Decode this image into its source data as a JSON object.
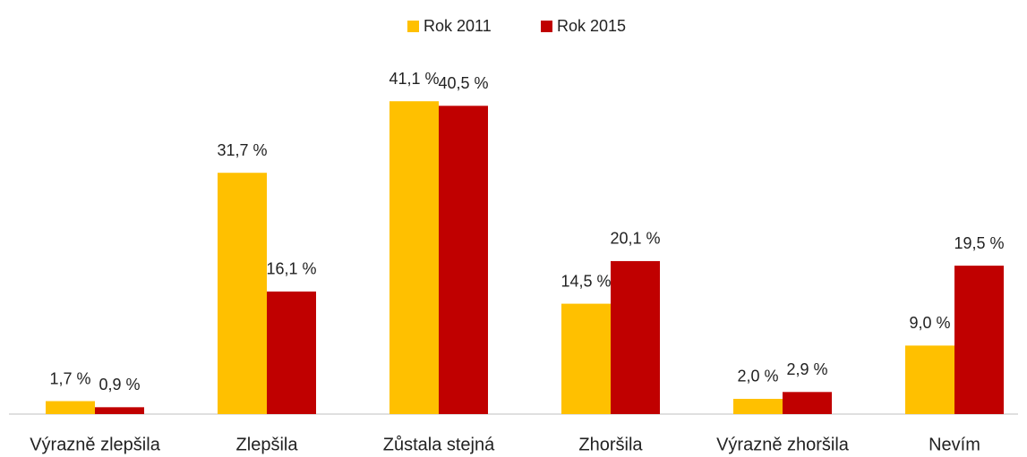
{
  "chart_data": {
    "type": "bar",
    "categories": [
      "Výrazně zlepšila",
      "Zlepšila",
      "Zůstala stejná",
      "Zhoršila",
      "Výrazně zhoršila",
      "Nevím"
    ],
    "series": [
      {
        "name": "Rok 2011",
        "color": "#ffc000",
        "values": [
          1.7,
          31.7,
          41.1,
          14.5,
          2.0,
          9.0
        ],
        "value_labels": [
          "1,7 %",
          "31,7 %",
          "41,1 %",
          "14,5 %",
          "2,0 %",
          "9,0 %"
        ]
      },
      {
        "name": "Rok 2015",
        "color": "#c00000",
        "values": [
          0.9,
          16.1,
          40.5,
          20.1,
          2.9,
          19.5
        ],
        "value_labels": [
          "0,9 %",
          "16,1 %",
          "40,5 %",
          "20,1 %",
          "2,9 %",
          "19,5 %"
        ]
      }
    ],
    "ylim": [
      0,
      47
    ],
    "legend": "top"
  }
}
